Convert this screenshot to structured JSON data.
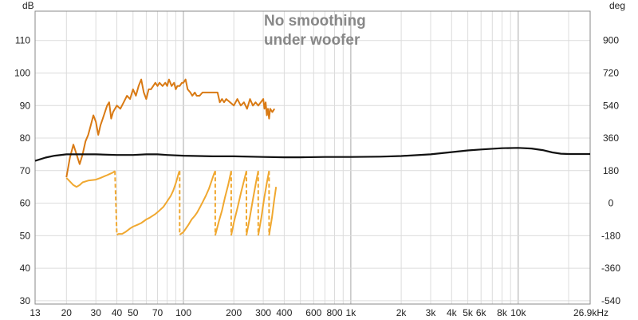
{
  "chart_data": {
    "type": "line",
    "title": "",
    "annotation_lines": [
      "No smoothing",
      "under woofer"
    ],
    "xlabel": "",
    "x_scale": "log",
    "xlim": [
      13,
      26900
    ],
    "x_ticks": [
      {
        "value": 13,
        "label": "13"
      },
      {
        "value": 20,
        "label": "20"
      },
      {
        "value": 30,
        "label": "30"
      },
      {
        "value": 40,
        "label": "40"
      },
      {
        "value": 50,
        "label": "50"
      },
      {
        "value": 70,
        "label": "70"
      },
      {
        "value": 100,
        "label": "100"
      },
      {
        "value": 200,
        "label": "200"
      },
      {
        "value": 300,
        "label": "300"
      },
      {
        "value": 400,
        "label": "400"
      },
      {
        "value": 600,
        "label": "600"
      },
      {
        "value": 800,
        "label": "800"
      },
      {
        "value": 1000,
        "label": "1k"
      },
      {
        "value": 2000,
        "label": "2k"
      },
      {
        "value": 3000,
        "label": "3k"
      },
      {
        "value": 4000,
        "label": "4k"
      },
      {
        "value": 5000,
        "label": "5k"
      },
      {
        "value": 6000,
        "label": "6k"
      },
      {
        "value": 8000,
        "label": "8k"
      },
      {
        "value": 10000,
        "label": "10k"
      },
      {
        "value": 26900,
        "label": "26.9kHz"
      }
    ],
    "y_left": {
      "unit": "dB",
      "lim": [
        29,
        119
      ],
      "ticks": [
        30,
        40,
        50,
        60,
        70,
        80,
        90,
        100,
        110
      ]
    },
    "y_right": {
      "unit": "deg",
      "lim": [
        -558,
        1062
      ],
      "ticks": [
        -540,
        -360,
        -180,
        0,
        180,
        360,
        540,
        720,
        900
      ]
    },
    "grid": true,
    "colors": {
      "spl": "#d97a14",
      "phase": "#f0a830",
      "flat": "#111111",
      "grid_major": "#a8a8a8",
      "grid_minor": "#dcdcdc",
      "annotation": "#888888"
    },
    "series": [
      {
        "key": "spl",
        "axis": "left",
        "points": [
          [
            20,
            68
          ],
          [
            21,
            74
          ],
          [
            22,
            78
          ],
          [
            23,
            75
          ],
          [
            24,
            72
          ],
          [
            25,
            75
          ],
          [
            26,
            79
          ],
          [
            27,
            81
          ],
          [
            28,
            84
          ],
          [
            29,
            87
          ],
          [
            30,
            85
          ],
          [
            31,
            81
          ],
          [
            32,
            84
          ],
          [
            33,
            86
          ],
          [
            34,
            88
          ],
          [
            35,
            90
          ],
          [
            36,
            91
          ],
          [
            37,
            86
          ],
          [
            38,
            88
          ],
          [
            40,
            90
          ],
          [
            42,
            89
          ],
          [
            44,
            91
          ],
          [
            46,
            93
          ],
          [
            48,
            92
          ],
          [
            50,
            95
          ],
          [
            52,
            93
          ],
          [
            54,
            96
          ],
          [
            56,
            98
          ],
          [
            58,
            94
          ],
          [
            60,
            92
          ],
          [
            62,
            95
          ],
          [
            64,
            95
          ],
          [
            66,
            96
          ],
          [
            68,
            97
          ],
          [
            70,
            96
          ],
          [
            72,
            97
          ],
          [
            75,
            96
          ],
          [
            78,
            97
          ],
          [
            80,
            96
          ],
          [
            82,
            98
          ],
          [
            85,
            96
          ],
          [
            88,
            97
          ],
          [
            90,
            95
          ],
          [
            92,
            96
          ],
          [
            95,
            96
          ],
          [
            98,
            97
          ],
          [
            100,
            97
          ],
          [
            103,
            98
          ],
          [
            106,
            95
          ],
          [
            110,
            94
          ],
          [
            113,
            93
          ],
          [
            117,
            94
          ],
          [
            120,
            93
          ],
          [
            125,
            93
          ],
          [
            130,
            94
          ],
          [
            135,
            94
          ],
          [
            140,
            94
          ],
          [
            150,
            94
          ],
          [
            160,
            94
          ],
          [
            165,
            91
          ],
          [
            170,
            92
          ],
          [
            175,
            91
          ],
          [
            180,
            92
          ],
          [
            190,
            91
          ],
          [
            200,
            90
          ],
          [
            210,
            92
          ],
          [
            220,
            90
          ],
          [
            230,
            91
          ],
          [
            240,
            89
          ],
          [
            250,
            92
          ],
          [
            260,
            90
          ],
          [
            270,
            91
          ],
          [
            280,
            90
          ],
          [
            290,
            91
          ],
          [
            300,
            92
          ],
          [
            305,
            89
          ],
          [
            310,
            91
          ],
          [
            315,
            87
          ],
          [
            320,
            89
          ],
          [
            325,
            86
          ],
          [
            330,
            89
          ],
          [
            340,
            88
          ],
          [
            350,
            89
          ]
        ]
      },
      {
        "key": "flat",
        "axis": "left",
        "points": [
          [
            13,
            73
          ],
          [
            15,
            74
          ],
          [
            17,
            74.6
          ],
          [
            20,
            75
          ],
          [
            25,
            75
          ],
          [
            30,
            75
          ],
          [
            40,
            74.8
          ],
          [
            50,
            74.8
          ],
          [
            60,
            75
          ],
          [
            70,
            75
          ],
          [
            80,
            74.8
          ],
          [
            100,
            74.6
          ],
          [
            150,
            74.4
          ],
          [
            200,
            74.4
          ],
          [
            300,
            74.2
          ],
          [
            400,
            74.1
          ],
          [
            500,
            74.1
          ],
          [
            700,
            74.2
          ],
          [
            1000,
            74.2
          ],
          [
            1500,
            74.3
          ],
          [
            2000,
            74.5
          ],
          [
            3000,
            75
          ],
          [
            4000,
            75.7
          ],
          [
            5000,
            76.2
          ],
          [
            6000,
            76.5
          ],
          [
            8000,
            76.9
          ],
          [
            10000,
            77
          ],
          [
            12000,
            76.8
          ],
          [
            14000,
            76.3
          ],
          [
            16000,
            75.6
          ],
          [
            18000,
            75.2
          ],
          [
            20000,
            75.1
          ],
          [
            26900,
            75.1
          ]
        ]
      },
      {
        "key": "phase",
        "axis": "right",
        "segments": [
          [
            [
              20,
              140
            ],
            [
              21,
              120
            ],
            [
              22,
              100
            ],
            [
              23,
              90
            ],
            [
              24,
              100
            ],
            [
              25,
              115
            ],
            [
              27,
              125
            ],
            [
              30,
              130
            ],
            [
              32,
              140
            ],
            [
              34,
              150
            ],
            [
              35,
              155
            ],
            [
              36,
              160
            ],
            [
              38,
              170
            ],
            [
              39,
              178
            ]
          ],
          [
            [
              40,
              -175
            ],
            [
              41,
              -170
            ],
            [
              43,
              -170
            ],
            [
              45,
              -160
            ],
            [
              48,
              -140
            ],
            [
              50,
              -130
            ],
            [
              53,
              -120
            ],
            [
              56,
              -110
            ],
            [
              60,
              -90
            ],
            [
              63,
              -80
            ],
            [
              68,
              -60
            ],
            [
              72,
              -40
            ],
            [
              76,
              -20
            ],
            [
              80,
              10
            ],
            [
              84,
              40
            ],
            [
              87,
              70
            ],
            [
              90,
              110
            ],
            [
              92,
              140
            ],
            [
              94,
              170
            ],
            [
              95,
              178
            ]
          ],
          [
            [
              95,
              -175
            ],
            [
              100,
              -160
            ],
            [
              107,
              -120
            ],
            [
              112,
              -90
            ],
            [
              117,
              -70
            ],
            [
              121,
              -50
            ],
            [
              126,
              -20
            ],
            [
              131,
              10
            ],
            [
              136,
              40
            ],
            [
              142,
              80
            ],
            [
              147,
              120
            ],
            [
              152,
              160
            ],
            [
              155,
              178
            ]
          ],
          [
            [
              155,
              -178
            ],
            [
              163,
              -100
            ],
            [
              170,
              -40
            ],
            [
              177,
              30
            ],
            [
              185,
              100
            ],
            [
              193,
              178
            ]
          ],
          [
            [
              193,
              -178
            ],
            [
              201,
              -100
            ],
            [
              211,
              -20
            ],
            [
              221,
              60
            ],
            [
              231,
              130
            ],
            [
              238,
              178
            ]
          ],
          [
            [
              238,
              -178
            ],
            [
              249,
              -80
            ],
            [
              260,
              20
            ],
            [
              272,
              120
            ],
            [
              280,
              178
            ]
          ],
          [
            [
              280,
              -178
            ],
            [
              292,
              -80
            ],
            [
              303,
              20
            ],
            [
              316,
              120
            ],
            [
              325,
              178
            ]
          ],
          [
            [
              325,
              -178
            ],
            [
              338,
              -80
            ],
            [
              349,
              20
            ],
            [
              358,
              90
            ]
          ]
        ]
      }
    ]
  }
}
